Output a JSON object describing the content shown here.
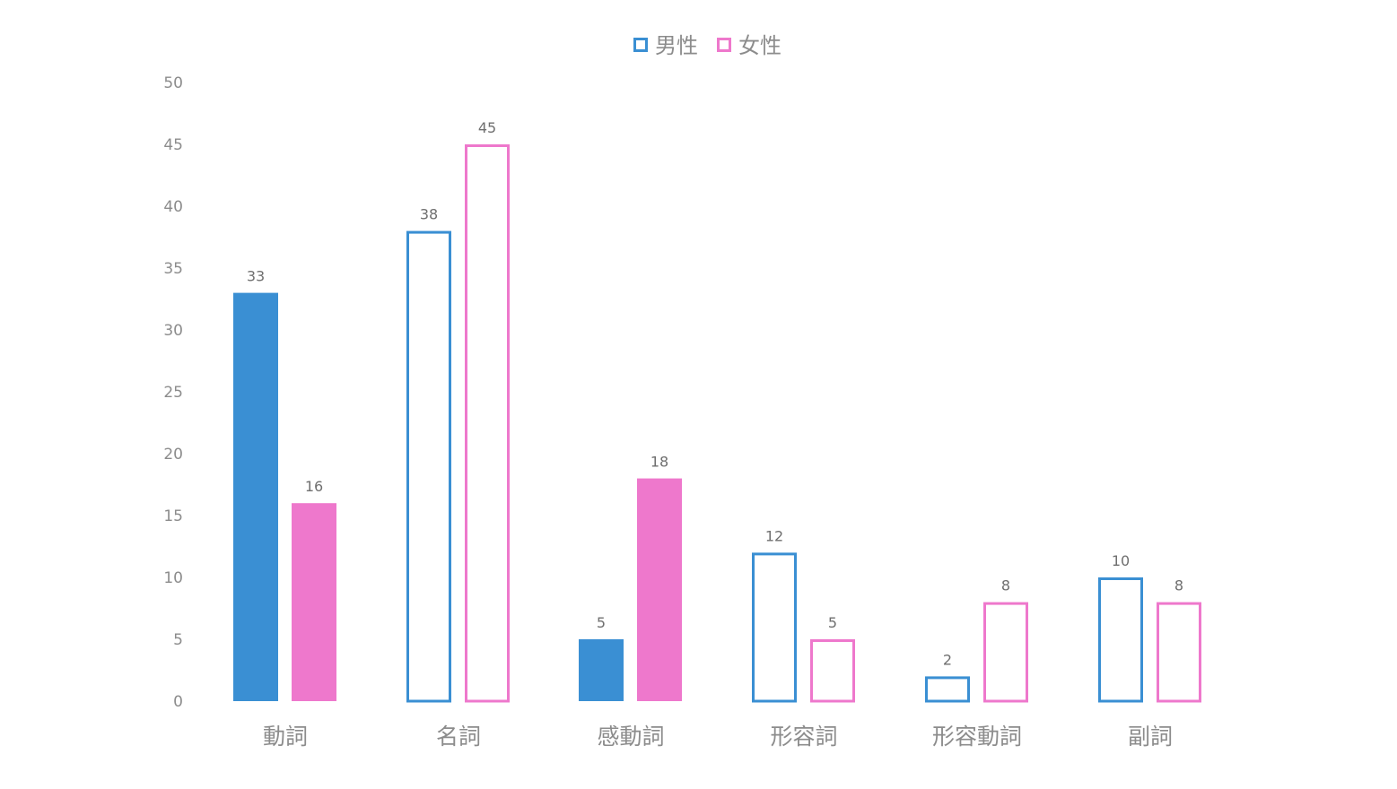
{
  "chart_data": {
    "type": "bar",
    "categories": [
      "動詞",
      "名詞",
      "感動詞",
      "形容詞",
      "形容動詞",
      "副詞"
    ],
    "series": [
      {
        "name": "男性",
        "color": "#3a8fd3",
        "values": [
          33,
          38,
          5,
          12,
          2,
          10
        ],
        "filled": [
          true,
          false,
          true,
          false,
          false,
          false
        ]
      },
      {
        "name": "女性",
        "color": "#ee78cc",
        "values": [
          16,
          45,
          18,
          5,
          8,
          8
        ],
        "filled": [
          true,
          false,
          true,
          false,
          false,
          false
        ]
      }
    ],
    "ylim": [
      0,
      50
    ],
    "yticks": [
      0,
      5,
      10,
      15,
      20,
      25,
      30,
      35,
      40,
      45,
      50
    ],
    "grid": false,
    "legend_position": "top-center",
    "data_labels": true
  }
}
